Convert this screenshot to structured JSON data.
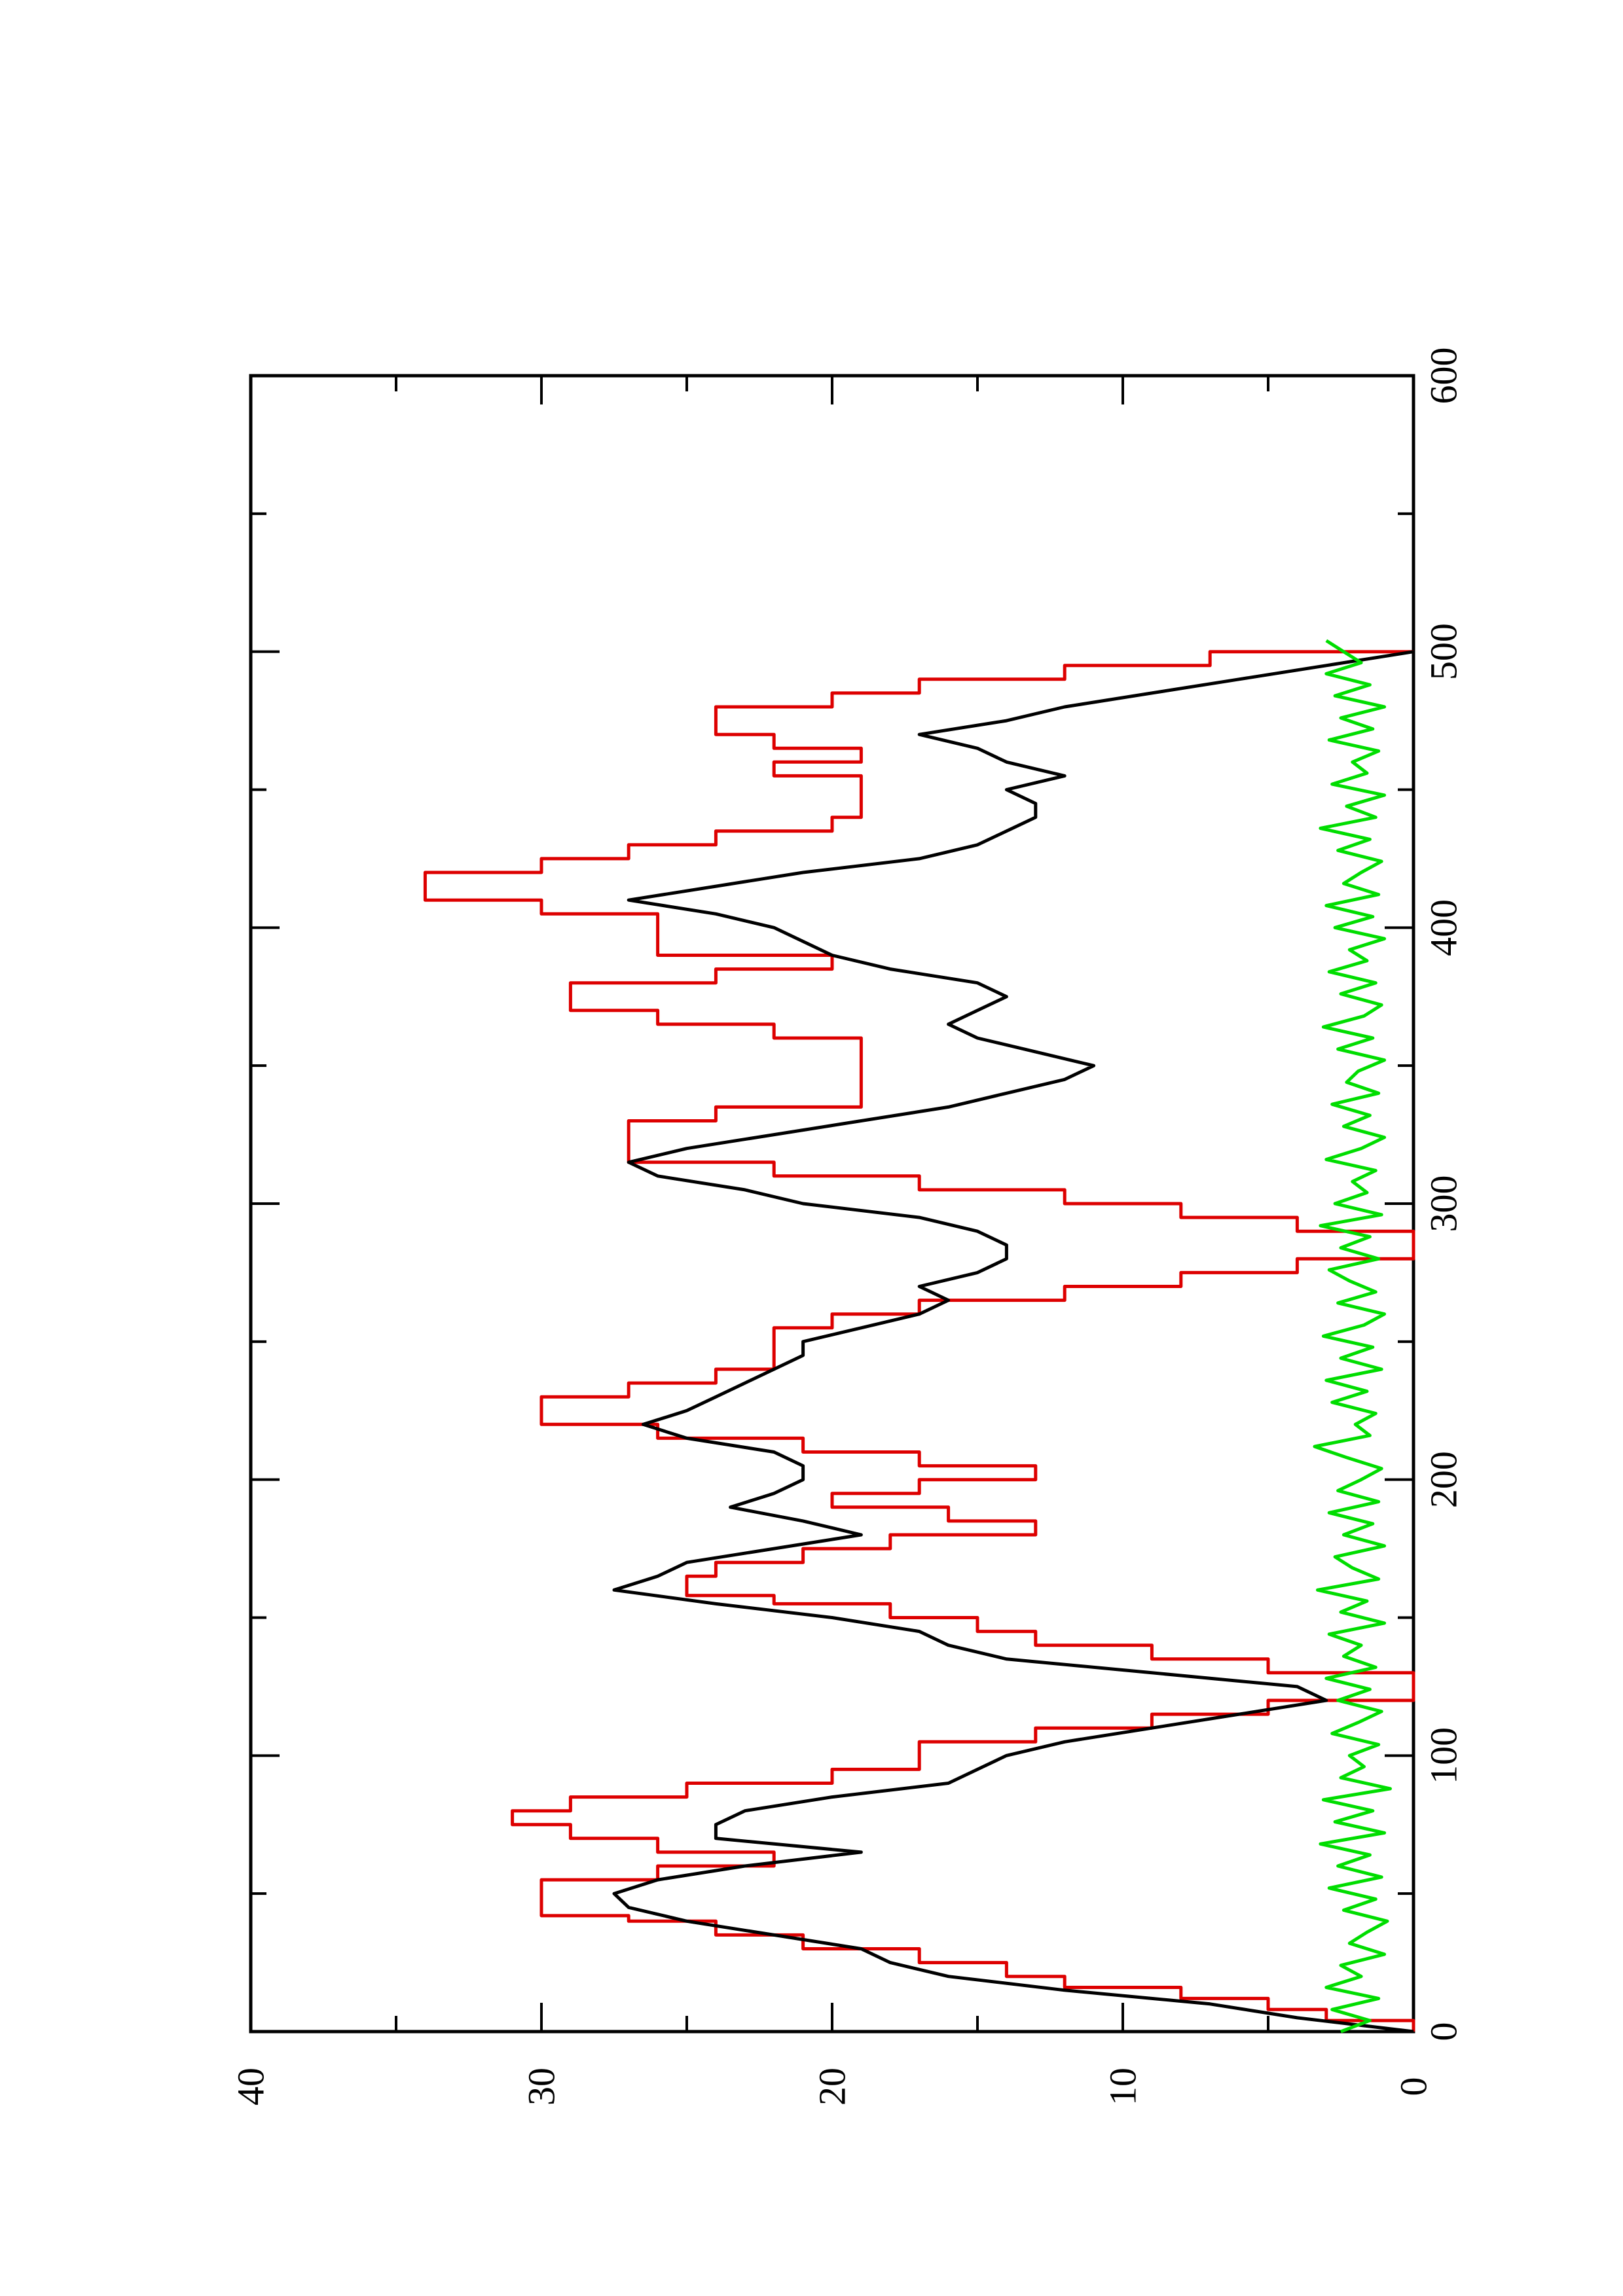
{
  "chart_data": {
    "type": "line",
    "orientation": "rotated-90-ccw",
    "title": "",
    "xlabel": "",
    "ylabel": "",
    "xlim": [
      0,
      600
    ],
    "ylim": [
      0,
      40
    ],
    "x_ticks": [
      0,
      100,
      200,
      300,
      400,
      500,
      600
    ],
    "x_tick_labels": [
      "0",
      "100",
      "200",
      "300",
      "400",
      "500",
      "600"
    ],
    "x_minor_ticks": [
      50,
      150,
      250,
      350,
      450,
      550
    ],
    "y_ticks": [
      0,
      10,
      20,
      30,
      40
    ],
    "y_tick_labels": [
      "0",
      "10",
      "20",
      "30",
      "40"
    ],
    "y_minor_ticks": [
      5,
      15,
      25,
      35
    ],
    "grid": false,
    "legend": "none",
    "series": [
      {
        "color": "#dd0000",
        "step": true,
        "x": [
          0,
          4,
          8,
          12,
          16,
          20,
          25,
          30,
          35,
          40,
          42,
          50,
          55,
          60,
          65,
          70,
          75,
          80,
          85,
          90,
          95,
          100,
          105,
          110,
          115,
          120,
          125,
          130,
          135,
          140,
          145,
          150,
          155,
          158,
          160,
          165,
          170,
          175,
          180,
          183,
          185,
          190,
          195,
          200,
          205,
          210,
          215,
          220,
          225,
          230,
          235,
          240,
          245,
          250,
          255,
          260,
          265,
          270,
          275,
          280,
          285,
          290,
          295,
          300,
          305,
          310,
          315,
          320,
          325,
          330,
          335,
          340,
          345,
          350,
          355,
          360,
          365,
          370,
          375,
          380,
          385,
          390,
          395,
          400,
          405,
          410,
          415,
          420,
          425,
          430,
          435,
          440,
          445,
          450,
          455,
          460,
          465,
          470,
          475,
          480,
          485,
          490,
          495,
          500
        ],
        "y": [
          0,
          3,
          5,
          8,
          12,
          14,
          17,
          21,
          24,
          27,
          30,
          30,
          26,
          22,
          26,
          29,
          31,
          29,
          25,
          20,
          17,
          17,
          13,
          9,
          5,
          0,
          0,
          5,
          9,
          13,
          15,
          18,
          22,
          25,
          25,
          24,
          21,
          18,
          13,
          13,
          16,
          20,
          17,
          13,
          17,
          21,
          26,
          30,
          30,
          27,
          24,
          22,
          22,
          22,
          20,
          17,
          12,
          8,
          4,
          0,
          0,
          4,
          8,
          12,
          17,
          22,
          27,
          27,
          27,
          24,
          19,
          19,
          19,
          19,
          19,
          22,
          26,
          29,
          29,
          24,
          20,
          26,
          26,
          26,
          30,
          34,
          34,
          30,
          27,
          24,
          20,
          19,
          19,
          19,
          22,
          19,
          22,
          24,
          24,
          20,
          17,
          12,
          7,
          0
        ]
      },
      {
        "color": "#000000",
        "step": false,
        "x": [
          0,
          5,
          10,
          15,
          20,
          25,
          30,
          35,
          40,
          45,
          50,
          55,
          60,
          65,
          70,
          75,
          80,
          85,
          90,
          95,
          100,
          105,
          110,
          115,
          120,
          125,
          130,
          135,
          140,
          145,
          150,
          155,
          160,
          165,
          170,
          175,
          180,
          185,
          190,
          195,
          200,
          205,
          210,
          215,
          220,
          225,
          230,
          235,
          240,
          245,
          250,
          255,
          260,
          265,
          270,
          275,
          280,
          285,
          290,
          295,
          300,
          305,
          310,
          315,
          320,
          325,
          330,
          335,
          340,
          345,
          350,
          355,
          360,
          365,
          370,
          375,
          380,
          385,
          390,
          395,
          400,
          405,
          410,
          415,
          420,
          425,
          430,
          435,
          440,
          445,
          450,
          455,
          460,
          465,
          470,
          475,
          480,
          485,
          490,
          495,
          500
        ],
        "y": [
          0,
          4,
          7,
          12,
          16,
          18,
          19,
          22,
          25,
          27,
          27.5,
          26,
          23,
          19,
          24,
          24,
          23,
          20,
          16,
          15,
          14,
          12,
          9,
          6,
          3,
          4,
          9,
          14,
          16,
          17,
          20,
          24,
          27.5,
          26,
          25,
          22,
          19,
          21,
          23.5,
          22,
          21,
          21,
          22,
          25,
          26.5,
          25,
          24,
          23,
          22,
          21,
          21,
          19,
          17,
          16,
          17,
          15,
          14,
          14,
          15,
          17,
          21,
          23,
          26,
          27,
          25,
          22,
          19,
          16,
          14,
          12,
          11,
          13,
          15,
          16,
          15,
          14,
          15,
          18,
          20,
          21,
          22,
          24,
          27,
          24,
          21,
          17,
          15,
          14,
          13,
          13,
          14,
          12,
          14,
          15,
          17,
          14,
          12,
          9,
          6,
          3,
          0
        ]
      },
      {
        "color": "#00dd00",
        "step": false,
        "x": [
          0,
          4,
          8,
          12,
          16,
          20,
          24,
          28,
          32,
          36,
          40,
          44,
          48,
          52,
          56,
          60,
          64,
          68,
          72,
          76,
          80,
          84,
          88,
          92,
          96,
          100,
          104,
          108,
          112,
          116,
          120,
          124,
          128,
          132,
          136,
          140,
          144,
          148,
          152,
          156,
          160,
          164,
          168,
          172,
          176,
          180,
          184,
          188,
          192,
          196,
          200,
          204,
          208,
          212,
          216,
          220,
          224,
          228,
          232,
          236,
          240,
          244,
          248,
          252,
          256,
          260,
          264,
          268,
          272,
          276,
          280,
          284,
          288,
          292,
          296,
          300,
          304,
          308,
          312,
          316,
          320,
          324,
          328,
          332,
          336,
          340,
          344,
          348,
          352,
          356,
          360,
          364,
          368,
          372,
          376,
          380,
          384,
          388,
          392,
          396,
          400,
          404,
          408,
          412,
          416,
          420,
          424,
          428,
          432,
          436,
          440,
          444,
          448,
          452,
          456,
          460,
          464,
          468,
          472,
          476,
          480,
          484,
          488,
          492,
          496,
          500,
          504
        ],
        "y": [
          2.5,
          1.5,
          2.8,
          1.2,
          3.0,
          1.8,
          2.5,
          1.0,
          2.2,
          1.6,
          0.9,
          2.4,
          1.3,
          2.9,
          1.1,
          2.6,
          1.5,
          3.2,
          1.0,
          2.7,
          1.4,
          3.1,
          0.8,
          2.5,
          1.7,
          2.2,
          1.2,
          2.8,
          1.9,
          1.1,
          2.6,
          1.5,
          3.0,
          1.3,
          2.4,
          1.8,
          2.9,
          1.0,
          2.5,
          1.6,
          3.3,
          1.2,
          2.1,
          2.7,
          1.0,
          2.4,
          1.4,
          2.9,
          1.2,
          2.6,
          1.8,
          1.1,
          2.3,
          3.4,
          1.5,
          2.0,
          1.3,
          2.8,
          1.6,
          3.0,
          1.1,
          2.5,
          1.4,
          3.1,
          1.7,
          1.0,
          2.6,
          1.3,
          2.2,
          2.9,
          1.2,
          2.5,
          1.5,
          3.2,
          1.1,
          2.7,
          1.6,
          2.1,
          1.3,
          3.0,
          1.8,
          1.0,
          2.4,
          1.5,
          2.8,
          1.2,
          2.3,
          1.9,
          1.0,
          2.6,
          1.4,
          3.1,
          1.7,
          1.1,
          2.5,
          1.3,
          2.9,
          1.6,
          2.2,
          1.0,
          2.7,
          1.4,
          3.0,
          1.2,
          2.4,
          1.8,
          1.1,
          2.6,
          1.5,
          3.2,
          1.3,
          2.3,
          1.0,
          2.8,
          1.6,
          2.1,
          1.2,
          2.9,
          1.4,
          2.5,
          1.0,
          2.7,
          1.5,
          3.0,
          1.8,
          2.4,
          3.0
        ]
      }
    ]
  }
}
